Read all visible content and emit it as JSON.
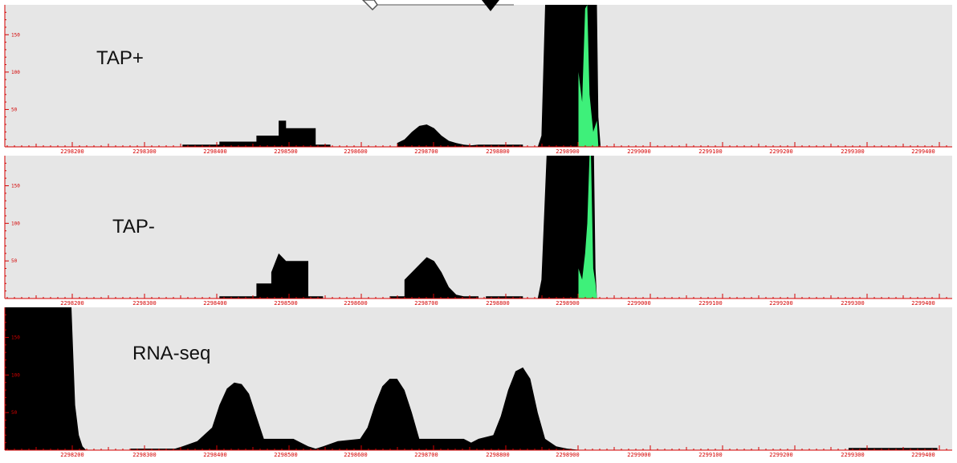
{
  "colors": {
    "panel_bg": "#e6e6e6",
    "coverage": "#000000",
    "highlight": "#3ef07a",
    "axis": "#d40000",
    "pointer": "#000000"
  },
  "x_ticks": [
    "2298200",
    "2298300",
    "2298400",
    "2298500",
    "2298600",
    "2298700",
    "2298800",
    "2298900",
    "2299000",
    "2299100",
    "2299200",
    "2299300",
    "2299400"
  ],
  "y_ticks": [
    "50",
    "100",
    "150"
  ],
  "chart_data": [
    {
      "type": "area",
      "title": "TAP+",
      "xlim": [
        2298160,
        2299440
      ],
      "ylim": [
        0,
        190
      ],
      "coverage": [
        [
          2298160,
          0
        ],
        [
          2298400,
          0
        ],
        [
          2298400,
          3
        ],
        [
          2298450,
          3
        ],
        [
          2298450,
          7
        ],
        [
          2298500,
          7
        ],
        [
          2298500,
          15
        ],
        [
          2298530,
          15
        ],
        [
          2298530,
          35
        ],
        [
          2298540,
          35
        ],
        [
          2298540,
          25
        ],
        [
          2298580,
          25
        ],
        [
          2298580,
          3
        ],
        [
          2298600,
          3
        ],
        [
          2298600,
          0
        ],
        [
          2298690,
          0
        ],
        [
          2298690,
          5
        ],
        [
          2298700,
          10
        ],
        [
          2298710,
          20
        ],
        [
          2298720,
          28
        ],
        [
          2298730,
          30
        ],
        [
          2298740,
          25
        ],
        [
          2298750,
          15
        ],
        [
          2298760,
          8
        ],
        [
          2298770,
          5
        ],
        [
          2298780,
          3
        ],
        [
          2298790,
          2
        ],
        [
          2298800,
          3
        ],
        [
          2298860,
          3
        ],
        [
          2298860,
          0
        ],
        [
          2298880,
          0
        ],
        [
          2298885,
          15
        ],
        [
          2298890,
          190
        ],
        [
          2298960,
          190
        ],
        [
          2298962,
          40
        ],
        [
          2298965,
          0
        ],
        [
          2299440,
          0
        ]
      ],
      "highlight": [
        [
          2298880,
          0
        ],
        [
          2298935,
          0
        ],
        [
          2298935,
          100
        ],
        [
          2298940,
          60
        ],
        [
          2298944,
          185
        ],
        [
          2298947,
          190
        ],
        [
          2298950,
          70
        ],
        [
          2298955,
          20
        ],
        [
          2298960,
          35
        ],
        [
          2298962,
          0
        ],
        [
          2299440,
          0
        ]
      ]
    },
    {
      "type": "area",
      "title": "TAP-",
      "xlim": [
        2298160,
        2299440
      ],
      "ylim": [
        0,
        190
      ],
      "coverage": [
        [
          2298160,
          0
        ],
        [
          2298450,
          0
        ],
        [
          2298450,
          3
        ],
        [
          2298500,
          3
        ],
        [
          2298500,
          20
        ],
        [
          2298520,
          20
        ],
        [
          2298520,
          35
        ],
        [
          2298530,
          60
        ],
        [
          2298540,
          50
        ],
        [
          2298570,
          50
        ],
        [
          2298570,
          3
        ],
        [
          2298590,
          3
        ],
        [
          2298590,
          0
        ],
        [
          2298680,
          0
        ],
        [
          2298680,
          3
        ],
        [
          2298700,
          3
        ],
        [
          2298700,
          25
        ],
        [
          2298710,
          35
        ],
        [
          2298720,
          45
        ],
        [
          2298730,
          55
        ],
        [
          2298740,
          50
        ],
        [
          2298750,
          35
        ],
        [
          2298760,
          15
        ],
        [
          2298770,
          5
        ],
        [
          2298780,
          3
        ],
        [
          2298800,
          3
        ],
        [
          2298800,
          0
        ],
        [
          2298810,
          0
        ],
        [
          2298810,
          3
        ],
        [
          2298860,
          3
        ],
        [
          2298860,
          0
        ],
        [
          2298880,
          0
        ],
        [
          2298885,
          25
        ],
        [
          2298892,
          190
        ],
        [
          2298956,
          190
        ],
        [
          2298958,
          40
        ],
        [
          2298960,
          0
        ],
        [
          2299440,
          0
        ]
      ],
      "highlight": [
        [
          2298880,
          0
        ],
        [
          2298935,
          0
        ],
        [
          2298935,
          40
        ],
        [
          2298940,
          25
        ],
        [
          2298944,
          60
        ],
        [
          2298947,
          100
        ],
        [
          2298950,
          190
        ],
        [
          2298952,
          190
        ],
        [
          2298955,
          40
        ],
        [
          2298958,
          20
        ],
        [
          2298960,
          0
        ],
        [
          2299440,
          0
        ]
      ]
    },
    {
      "type": "area",
      "title": "RNA-seq",
      "xlim": [
        2298160,
        2299440
      ],
      "ylim": [
        0,
        190
      ],
      "coverage": [
        [
          2298160,
          0
        ],
        [
          2298160,
          190
        ],
        [
          2298250,
          190
        ],
        [
          2298255,
          60
        ],
        [
          2298260,
          20
        ],
        [
          2298265,
          5
        ],
        [
          2298270,
          0
        ],
        [
          2298330,
          0
        ],
        [
          2298330,
          2
        ],
        [
          2298390,
          2
        ],
        [
          2298400,
          5
        ],
        [
          2298420,
          12
        ],
        [
          2298440,
          30
        ],
        [
          2298450,
          60
        ],
        [
          2298460,
          82
        ],
        [
          2298470,
          90
        ],
        [
          2298480,
          88
        ],
        [
          2298490,
          75
        ],
        [
          2298500,
          45
        ],
        [
          2298510,
          15
        ],
        [
          2298550,
          15
        ],
        [
          2298560,
          10
        ],
        [
          2298570,
          5
        ],
        [
          2298580,
          2
        ],
        [
          2298590,
          5
        ],
        [
          2298610,
          12
        ],
        [
          2298640,
          15
        ],
        [
          2298650,
          30
        ],
        [
          2298660,
          60
        ],
        [
          2298670,
          85
        ],
        [
          2298680,
          95
        ],
        [
          2298690,
          95
        ],
        [
          2298700,
          80
        ],
        [
          2298710,
          50
        ],
        [
          2298720,
          15
        ],
        [
          2298780,
          15
        ],
        [
          2298790,
          10
        ],
        [
          2298800,
          15
        ],
        [
          2298820,
          20
        ],
        [
          2298830,
          45
        ],
        [
          2298840,
          80
        ],
        [
          2298850,
          105
        ],
        [
          2298860,
          110
        ],
        [
          2298870,
          95
        ],
        [
          2298880,
          50
        ],
        [
          2298890,
          15
        ],
        [
          2298905,
          5
        ],
        [
          2298920,
          2
        ],
        [
          2298940,
          0
        ],
        [
          2299300,
          0
        ],
        [
          2299300,
          3
        ],
        [
          2299420,
          3
        ],
        [
          2299420,
          0
        ],
        [
          2299440,
          0
        ]
      ],
      "highlight": []
    }
  ]
}
